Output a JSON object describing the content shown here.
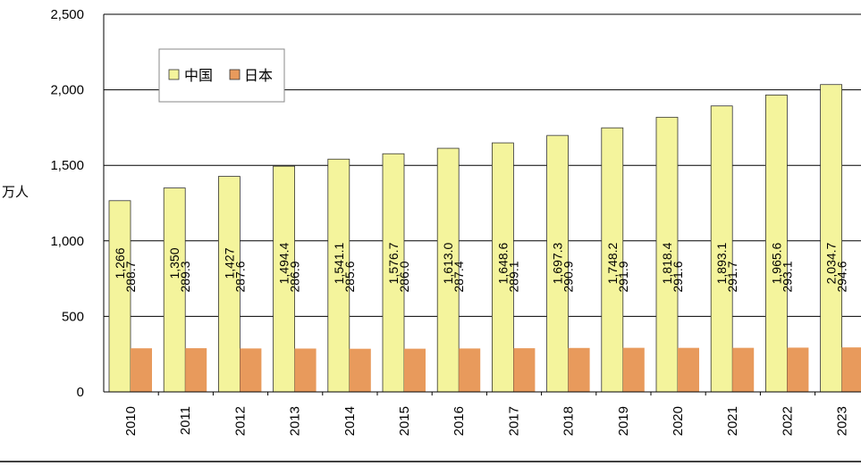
{
  "chart_data": {
    "type": "bar",
    "categories": [
      "2010",
      "2011",
      "2012",
      "2013",
      "2014",
      "2015",
      "2016",
      "2017",
      "2018",
      "2019",
      "2020",
      "2021",
      "2022",
      "2023"
    ],
    "series": [
      {
        "name": "中国",
        "color": "#f4f49c",
        "values": [
          1266,
          1350,
          1427,
          1494.4,
          1541.1,
          1576.7,
          1613.0,
          1648.6,
          1697.3,
          1748.2,
          1818.4,
          1893.1,
          1965.6,
          2034.7
        ],
        "labels": [
          "1,266",
          "1,350",
          "1,427",
          "1,494.4",
          "1,541.1",
          "1,576.7",
          "1,613.0",
          "1,648.6",
          "1,697.3",
          "1,748.2",
          "1,818.4",
          "1,893.1",
          "1,965.6",
          "2,034.7"
        ]
      },
      {
        "name": "日本",
        "color": "#e89a5c",
        "values": [
          288.7,
          289.3,
          287.6,
          286.9,
          285.6,
          286.0,
          287.4,
          289.1,
          290.9,
          291.9,
          291.6,
          291.7,
          293.1,
          294.6
        ],
        "labels": [
          "288.7",
          "289.3",
          "287.6",
          "286.9",
          "285.6",
          "286.0",
          "287.4",
          "289.1",
          "290.9",
          "291.9",
          "291.6",
          "291.7",
          "293.1",
          "294.6"
        ]
      }
    ],
    "ylabel": "万人",
    "ylim": [
      0,
      2500
    ],
    "yticks": [
      0,
      500,
      1000,
      1500,
      2000,
      2500
    ],
    "ytick_labels": [
      "0",
      "500",
      "1,000",
      "1,500",
      "2,000",
      "2,500"
    ],
    "grid": true,
    "legend_position": "top-left"
  }
}
